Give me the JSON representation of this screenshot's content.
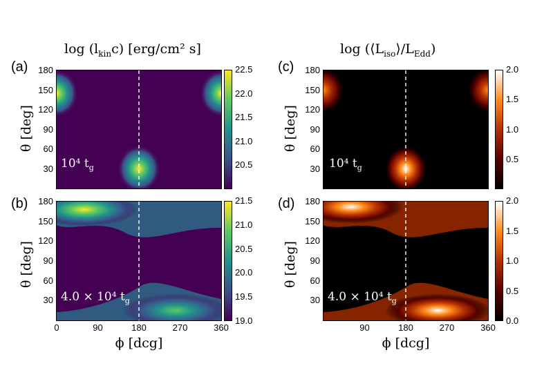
{
  "figure": {
    "left_title": "log (l",
    "left_title_sub": "kin",
    "left_title_rest": "c) [erg/cm² s]",
    "right_title": "log (⟨L",
    "right_title_sub": "iso",
    "right_title_mid": "⟩/L",
    "right_title_sub2": "Edd",
    "right_title_rest": ")"
  },
  "chart_data": [
    {
      "panel": "(a)",
      "type": "heatmap",
      "colormap": "viridis",
      "annotation": "10⁴ t",
      "annotation_sub": "g",
      "xlabel": "",
      "ylabel": "θ [deg]",
      "xlim": [
        0,
        360
      ],
      "ylim": [
        0,
        180
      ],
      "yticks": [
        "180",
        "150",
        "120",
        "90",
        "60",
        "30"
      ],
      "xticks": [],
      "colorbar": {
        "min": 20.0,
        "max": 22.5,
        "ticks": [
          "22.5",
          "22.0",
          "21.5",
          "21.0",
          "20.5"
        ]
      },
      "dashed_line_x": 180,
      "blobs": [
        {
          "phi": 0,
          "theta": 145,
          "value": 22.3
        },
        {
          "phi": 360,
          "theta": 145,
          "value": 22.3
        },
        {
          "phi": 180,
          "theta": 30,
          "value": 22.5
        }
      ]
    },
    {
      "panel": "(b)",
      "type": "heatmap",
      "colormap": "viridis",
      "annotation": "4.0 × 10⁴ t",
      "annotation_sub": "g",
      "xlabel": "ϕ [dcg]",
      "ylabel": "θ [deg]",
      "xlim": [
        0,
        360
      ],
      "ylim": [
        0,
        180
      ],
      "yticks": [
        "180",
        "150",
        "120",
        "90",
        "60",
        "30"
      ],
      "xticks": [
        "0",
        "90",
        "180",
        "270",
        "360"
      ],
      "colorbar": {
        "min": 19.0,
        "max": 21.5,
        "ticks": [
          "21.5",
          "21.0",
          "20.5",
          "20.0",
          "19.5",
          "19.0"
        ]
      },
      "dashed_line_x": 180,
      "blobs": [
        {
          "phi": 60,
          "theta": 168,
          "value": 21.3
        },
        {
          "phi": 260,
          "theta": 15,
          "value": 21.0
        }
      ]
    },
    {
      "panel": "(c)",
      "type": "heatmap",
      "colormap": "gist_heat",
      "annotation": "10⁴ t",
      "annotation_sub": "g",
      "xlabel": "",
      "ylabel": "θ [deg]",
      "xlim": [
        0,
        360
      ],
      "ylim": [
        0,
        180
      ],
      "yticks": [
        "180",
        "150",
        "120",
        "90",
        "60",
        "30"
      ],
      "xticks": [],
      "colorbar": {
        "min": 0.0,
        "max": 2.0,
        "ticks": [
          "2.0",
          "1.5",
          "1.0",
          "0.5"
        ]
      },
      "dashed_line_x": 180,
      "blobs": [
        {
          "phi": 0,
          "theta": 150,
          "value": 1.6
        },
        {
          "phi": 360,
          "theta": 150,
          "value": 1.6
        },
        {
          "phi": 180,
          "theta": 30,
          "value": 1.8
        }
      ]
    },
    {
      "panel": "(d)",
      "type": "heatmap",
      "colormap": "gist_heat",
      "annotation": "4.0 × 10⁴ t",
      "annotation_sub": "g",
      "xlabel": "ϕ [dcg]",
      "ylabel": "θ [deg]",
      "xlim": [
        0,
        360
      ],
      "ylim": [
        0,
        180
      ],
      "yticks": [
        "180",
        "150",
        "120",
        "90",
        "60",
        "30"
      ],
      "xticks": [
        "90",
        "180",
        "270",
        "360"
      ],
      "colorbar": {
        "min": 0.0,
        "max": 2.0,
        "ticks": [
          "2.0",
          "1.5",
          "1.0",
          "0.5",
          "0.0"
        ]
      },
      "dashed_line_x": 180,
      "blobs": [
        {
          "phi": 60,
          "theta": 172,
          "value": 2.0
        },
        {
          "phi": 250,
          "theta": 15,
          "value": 2.0
        }
      ]
    }
  ]
}
